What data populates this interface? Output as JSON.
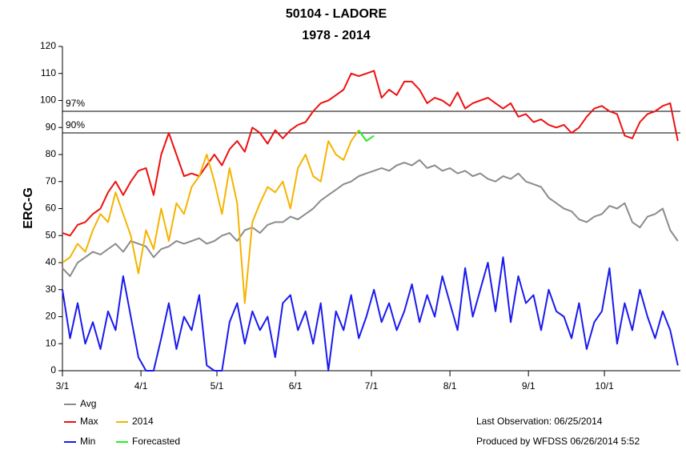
{
  "chart_data": {
    "type": "line",
    "title": "50104 - LADORE",
    "subtitle": "1978 - 2014",
    "ylabel": "ERC-G",
    "x": [
      0,
      3,
      6,
      9,
      12,
      15,
      18,
      21,
      24,
      27,
      30,
      33,
      36,
      39,
      42,
      45,
      48,
      51,
      54,
      57,
      60,
      63,
      66,
      69,
      72,
      75,
      78,
      81,
      84,
      87,
      90,
      93,
      96,
      99,
      102,
      105,
      108,
      111,
      114,
      117,
      120,
      123,
      126,
      129,
      132,
      135,
      138,
      141,
      144,
      147,
      150,
      153,
      156,
      159,
      162,
      165,
      168,
      171,
      174,
      177,
      180,
      183,
      186,
      189,
      192,
      195,
      198,
      201,
      204,
      207,
      210,
      213,
      216,
      219,
      222,
      225,
      228,
      231,
      234,
      237,
      240,
      243
    ],
    "xlim": [
      0,
      244
    ],
    "xticks": [
      {
        "value": 0,
        "label": "3/1"
      },
      {
        "value": 31,
        "label": "4/1"
      },
      {
        "value": 61,
        "label": "5/1"
      },
      {
        "value": 92,
        "label": "6/1"
      },
      {
        "value": 122,
        "label": "7/1"
      },
      {
        "value": 153,
        "label": "8/1"
      },
      {
        "value": 184,
        "label": "9/1"
      },
      {
        "value": 214,
        "label": "10/1"
      }
    ],
    "ylim": [
      0,
      120
    ],
    "yticks": [
      0,
      10,
      20,
      30,
      40,
      50,
      60,
      70,
      80,
      90,
      100,
      110,
      120
    ],
    "reference_lines": [
      {
        "label": "97%",
        "value": 96
      },
      {
        "label": "90%",
        "value": 88
      }
    ],
    "series": [
      {
        "name": "Avg",
        "color": "#8c8c8c",
        "values": [
          38,
          35,
          40,
          42,
          44,
          43,
          45,
          47,
          44,
          48,
          47,
          46,
          42,
          45,
          46,
          48,
          47,
          48,
          49,
          47,
          48,
          50,
          51,
          48,
          52,
          53,
          51,
          54,
          55,
          55,
          57,
          56,
          58,
          60,
          63,
          65,
          67,
          69,
          70,
          72,
          73,
          74,
          75,
          74,
          76,
          77,
          76,
          78,
          75,
          76,
          74,
          75,
          73,
          74,
          72,
          73,
          71,
          70,
          72,
          71,
          73,
          70,
          69,
          68,
          64,
          62,
          60,
          59,
          56,
          55,
          57,
          58,
          61,
          60,
          62,
          55,
          53,
          57,
          58,
          60,
          52,
          48
        ]
      },
      {
        "name": "Max",
        "color": "#ee1111",
        "values": [
          51,
          50,
          54,
          55,
          58,
          60,
          66,
          70,
          65,
          70,
          74,
          75,
          65,
          80,
          88,
          80,
          72,
          73,
          72,
          76,
          80,
          76,
          82,
          85,
          81,
          90,
          88,
          84,
          89,
          86,
          89,
          91,
          92,
          96,
          99,
          100,
          102,
          104,
          110,
          109,
          110,
          111,
          101,
          104,
          102,
          107,
          107,
          104,
          99,
          101,
          100,
          98,
          103,
          97,
          99,
          100,
          101,
          99,
          97,
          99,
          94,
          95,
          92,
          93,
          91,
          90,
          91,
          88,
          90,
          94,
          97,
          98,
          96,
          95,
          87,
          86,
          92,
          95,
          96,
          98,
          99,
          85
        ]
      },
      {
        "name": "2014",
        "color": "#f5b400",
        "values": [
          40,
          42,
          47,
          44,
          52,
          58,
          55,
          66,
          58,
          50,
          36,
          52,
          45,
          60,
          48,
          62,
          58,
          68,
          72,
          80,
          70,
          58,
          75,
          62,
          25,
          55,
          62,
          68,
          66,
          70,
          60,
          75,
          80,
          72,
          70,
          85,
          80,
          78,
          85,
          89,
          null,
          null,
          null,
          null,
          null,
          null,
          null,
          null,
          null,
          null,
          null,
          null,
          null,
          null,
          null,
          null,
          null,
          null,
          null,
          null,
          null,
          null,
          null,
          null,
          null,
          null,
          null,
          null,
          null,
          null,
          null,
          null,
          null,
          null,
          null,
          null,
          null,
          null,
          null,
          null,
          null,
          null
        ]
      },
      {
        "name": "Min",
        "color": "#1a1aee",
        "values": [
          30,
          12,
          25,
          10,
          18,
          8,
          22,
          15,
          35,
          20,
          5,
          0,
          0,
          12,
          25,
          8,
          20,
          15,
          28,
          2,
          0,
          0,
          18,
          25,
          10,
          22,
          15,
          20,
          5,
          25,
          28,
          15,
          22,
          10,
          25,
          0,
          22,
          15,
          28,
          12,
          20,
          30,
          18,
          25,
          15,
          22,
          32,
          18,
          28,
          20,
          35,
          25,
          15,
          38,
          20,
          30,
          40,
          22,
          42,
          18,
          35,
          25,
          28,
          15,
          30,
          22,
          20,
          12,
          25,
          8,
          18,
          22,
          38,
          10,
          25,
          15,
          30,
          20,
          12,
          22,
          15,
          2
        ]
      },
      {
        "name": "Forecasted",
        "color": "#22ee22",
        "values": [
          null,
          null,
          null,
          null,
          null,
          null,
          null,
          null,
          null,
          null,
          null,
          null,
          null,
          null,
          null,
          null,
          null,
          null,
          null,
          null,
          null,
          null,
          null,
          null,
          null,
          null,
          null,
          null,
          null,
          null,
          null,
          null,
          null,
          null,
          null,
          null,
          null,
          null,
          null,
          89,
          85,
          87,
          null,
          null,
          null,
          null,
          null,
          null,
          null,
          null,
          null,
          null,
          null,
          null,
          null,
          null,
          null,
          null,
          null,
          null,
          null,
          null,
          null,
          null,
          null,
          null,
          null,
          null,
          null,
          null,
          null,
          null,
          null,
          null,
          null,
          null,
          null,
          null,
          null,
          null,
          null,
          null
        ]
      }
    ],
    "notes": [
      "Last Observation: 06/25/2014",
      "Produced by WFDSS 06/26/2014 5:52"
    ]
  }
}
